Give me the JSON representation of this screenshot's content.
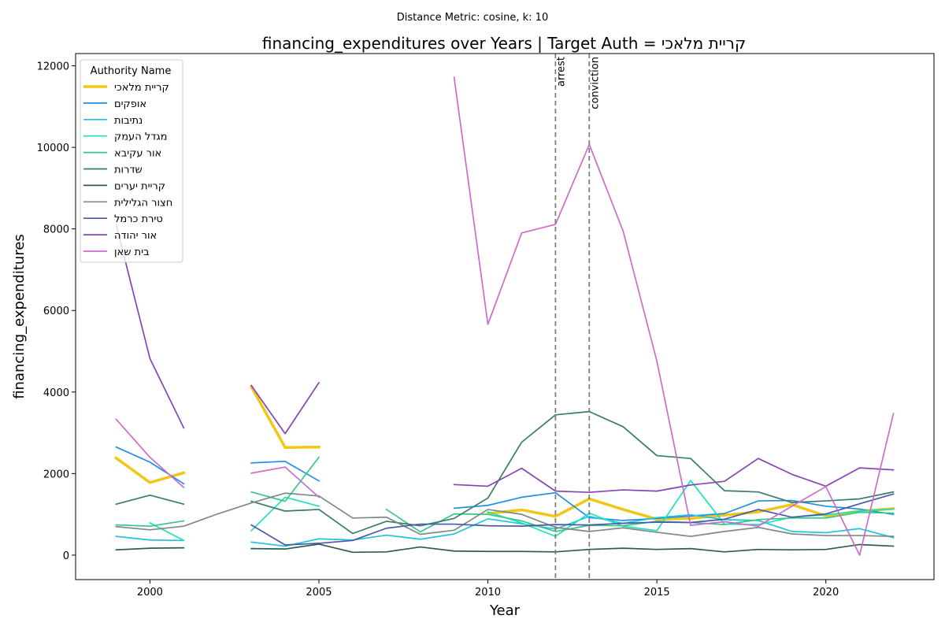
{
  "chart_data": {
    "type": "line",
    "suptitle": "Distance Metric: cosine, k: 10",
    "title": "financing_expenditures over Years | Target Auth = קריית מלאכי",
    "xlabel": "Year",
    "ylabel": "financing_expenditures",
    "xlim": [
      1997.8,
      2023.2
    ],
    "ylim": [
      -600,
      12300
    ],
    "xticks": [
      2000,
      2005,
      2010,
      2015,
      2020
    ],
    "yticks": [
      0,
      2000,
      4000,
      6000,
      8000,
      10000,
      12000
    ],
    "grid": false,
    "legend": {
      "title": "Authority Name",
      "placement": "top-left"
    },
    "vlines": [
      {
        "x": 2012,
        "label": "arrest"
      },
      {
        "x": 2013,
        "label": "conviction"
      }
    ],
    "x": [
      1999,
      2000,
      2001,
      2002,
      2003,
      2004,
      2005,
      2006,
      2007,
      2008,
      2009,
      2010,
      2011,
      2012,
      2013,
      2014,
      2015,
      2016,
      2017,
      2018,
      2019,
      2020,
      2021,
      2022
    ],
    "series": [
      {
        "name": "קריית מלאכי",
        "color": "#f2c616",
        "width": 3.5,
        "values": [
          2380,
          1780,
          2020,
          null,
          4130,
          2640,
          2650,
          null,
          null,
          null,
          null,
          1020,
          1110,
          950,
          1380,
          1120,
          880,
          900,
          980,
          1060,
          1240,
          960,
          1080,
          1140
        ]
      },
      {
        "name": "אופקים",
        "color": "#1f8fe5",
        "width": 1.7,
        "values": [
          2650,
          2280,
          1750,
          null,
          2260,
          2300,
          1820,
          null,
          null,
          null,
          1150,
          1220,
          1420,
          1530,
          920,
          850,
          900,
          960,
          1020,
          1330,
          1340,
          1200,
          1130,
          1000
        ]
      },
      {
        "name": "נתיבות",
        "color": "#20c4dc",
        "width": 1.7,
        "values": [
          460,
          370,
          360,
          null,
          320,
          220,
          400,
          370,
          490,
          390,
          520,
          890,
          770,
          640,
          950,
          780,
          920,
          990,
          870,
          850,
          580,
          550,
          650,
          430
        ]
      },
      {
        "name": "מגדל העמק",
        "color": "#1fe0c0",
        "width": 1.7,
        "values": [
          null,
          790,
          360,
          null,
          600,
          1420,
          1200,
          null,
          null,
          null,
          null,
          1060,
          790,
          460,
          1030,
          710,
          600,
          1830,
          760,
          750,
          930,
          990,
          1080,
          1130
        ]
      },
      {
        "name": "אור עקיבא",
        "color": "#34c889",
        "width": 1.7,
        "values": [
          740,
          710,
          840,
          null,
          1550,
          1320,
          2400,
          null,
          1120,
          570,
          1010,
          1000,
          840,
          580,
          730,
          720,
          830,
          800,
          750,
          870,
          910,
          910,
          1050,
          1030
        ]
      },
      {
        "name": "שדרות",
        "color": "#3a7d66",
        "width": 1.7,
        "values": [
          1250,
          1470,
          1250,
          null,
          1320,
          1080,
          1120,
          530,
          830,
          720,
          900,
          1400,
          2770,
          3440,
          3520,
          3150,
          2440,
          2370,
          1580,
          1550,
          1290,
          1330,
          1380,
          1550
        ]
      },
      {
        "name": "קריית יערים",
        "color": "#2f5b4d",
        "width": 1.7,
        "values": [
          130,
          170,
          180,
          null,
          160,
          150,
          270,
          70,
          80,
          200,
          100,
          90,
          90,
          80,
          140,
          170,
          140,
          160,
          80,
          140,
          130,
          140,
          260,
          220
        ]
      },
      {
        "name": "חצור הגלילית",
        "color": "#7d8a86",
        "width": 1.7,
        "values": [
          700,
          620,
          710,
          1010,
          1280,
          1520,
          1450,
          910,
          930,
          510,
          610,
          1120,
          1000,
          680,
          580,
          670,
          560,
          460,
          580,
          680,
          520,
          480,
          480,
          460
        ]
      },
      {
        "name": "טירת כרמל",
        "color": "#4b58a6",
        "width": 1.7,
        "values": [
          null,
          null,
          null,
          null,
          740,
          250,
          290,
          360,
          660,
          760,
          760,
          720,
          710,
          750,
          740,
          780,
          810,
          800,
          880,
          1120,
          930,
          1010,
          1260,
          1500
        ]
      },
      {
        "name": "אור יהודה",
        "color": "#8844b3",
        "width": 1.7,
        "values": [
          8100,
          4820,
          3120,
          null,
          4160,
          2980,
          4230,
          null,
          null,
          null,
          1730,
          1690,
          2130,
          1570,
          1540,
          1600,
          1570,
          1720,
          1810,
          2370,
          1980,
          1690,
          2140,
          2090
        ]
      },
      {
        "name": "בית שאן",
        "color": "#cc6ccc",
        "width": 1.7,
        "values": [
          3330,
          2400,
          1660,
          null,
          2010,
          2160,
          1420,
          null,
          null,
          null,
          11720,
          5660,
          7900,
          8110,
          10070,
          7950,
          4760,
          730,
          820,
          710,
          1200,
          1680,
          0,
          3470
        ]
      }
    ]
  }
}
